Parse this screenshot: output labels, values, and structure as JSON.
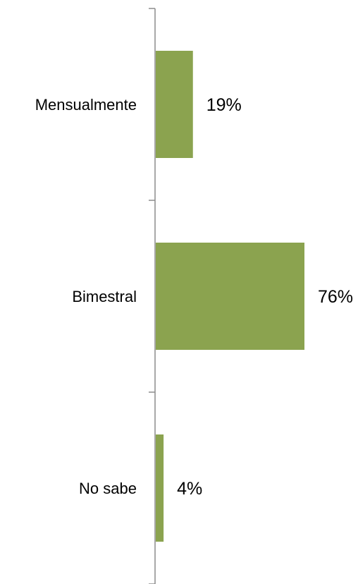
{
  "chart_data": {
    "type": "bar",
    "orientation": "horizontal",
    "categories": [
      "Mensualmente",
      "Bimestral",
      "No sabe"
    ],
    "values": [
      19,
      76,
      4
    ],
    "value_labels": [
      "19%",
      "76%",
      "4%"
    ],
    "title": "",
    "xlabel": "",
    "ylabel": "",
    "xlim": [
      0,
      100
    ],
    "grid": false,
    "legend": "none",
    "bar_color": "#8ba34f",
    "axis_color": "#8c8c8c"
  }
}
